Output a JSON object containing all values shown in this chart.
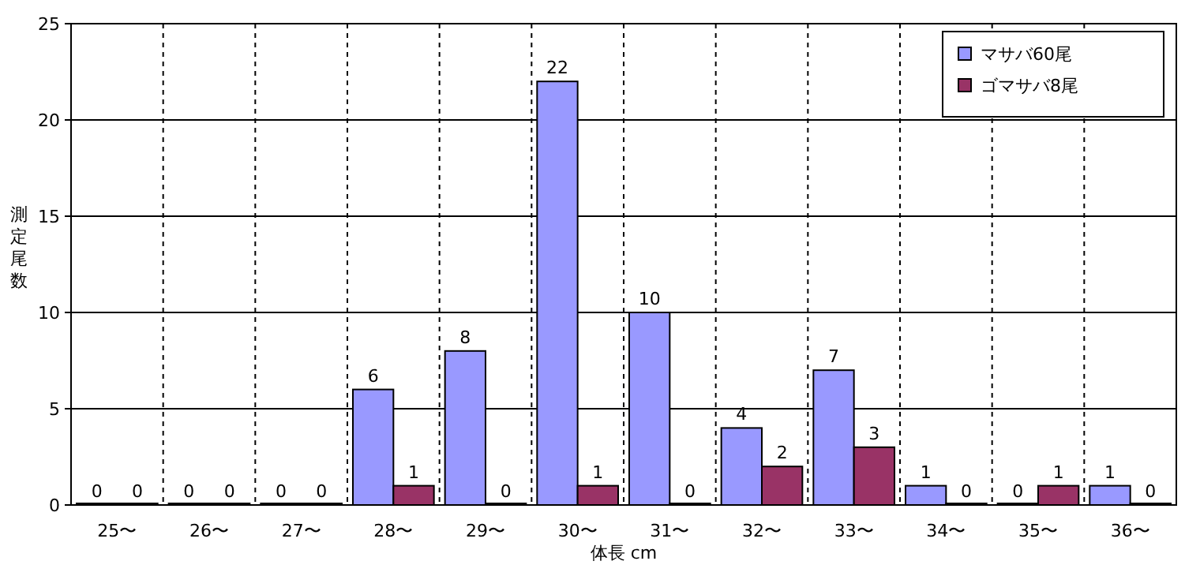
{
  "chart_data": {
    "type": "bar",
    "xlabel": "体長 cm",
    "ylabel": "測定尾数",
    "categories": [
      "25〜",
      "26〜",
      "27〜",
      "28〜",
      "29〜",
      "30〜",
      "31〜",
      "32〜",
      "33〜",
      "34〜",
      "35〜",
      "36〜"
    ],
    "series": [
      {
        "name": "マサバ60尾",
        "color": "#9999ff",
        "values": [
          0,
          0,
          0,
          6,
          8,
          22,
          10,
          4,
          7,
          1,
          0,
          1
        ]
      },
      {
        "name": "ゴマサバ8尾",
        "color": "#993366",
        "values": [
          0,
          0,
          0,
          1,
          0,
          1,
          0,
          2,
          3,
          0,
          1,
          0
        ]
      }
    ],
    "ylim": [
      0,
      25
    ],
    "yticks": [
      0,
      5,
      10,
      15,
      20,
      25
    ],
    "grid": true,
    "legend": "top right",
    "data_labels": true
  }
}
